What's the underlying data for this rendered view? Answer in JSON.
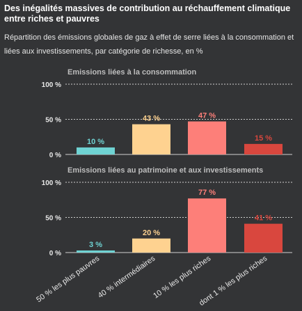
{
  "header": {
    "title": "Des inégalités massives de contribution au réchauffement climatique entre riches et pauvres",
    "subtitle": "Répartition des émissions globales de gaz à effet de serre liées à la consommation et liées aux investissements, par catégorie de richesse, en %"
  },
  "colors": {
    "background": "#333436",
    "categories": [
      "#6fd3d3",
      "#fed290",
      "#fd7f79",
      "#d9473e"
    ]
  },
  "chart_data": [
    {
      "type": "bar",
      "title": "Emissions liées à la consommation",
      "categories": [
        "50 % les plus pauvres",
        "40 % intermédiaires",
        "10 % les plus riches",
        "dont 1 % les plus riches"
      ],
      "values": [
        10,
        43,
        47,
        15
      ],
      "data_labels": [
        "10 %",
        "43 %",
        "47 %",
        "15 %"
      ],
      "ylim": [
        0,
        100
      ],
      "yticks": [
        "100 %",
        "50 %",
        "0 %"
      ],
      "grid": true
    },
    {
      "type": "bar",
      "title": "Emissions liées au patrimoine et aux investissements",
      "categories": [
        "50 % les plus pauvres",
        "40 % intermédiaires",
        "10 % les plus riches",
        "dont 1 % les plus riches"
      ],
      "values": [
        3,
        20,
        77,
        41
      ],
      "data_labels": [
        "3 %",
        "20 %",
        "77 %",
        "41 %"
      ],
      "ylim": [
        0,
        100
      ],
      "yticks": [
        "100 %",
        "50 %",
        "0 %"
      ],
      "grid": true
    }
  ]
}
